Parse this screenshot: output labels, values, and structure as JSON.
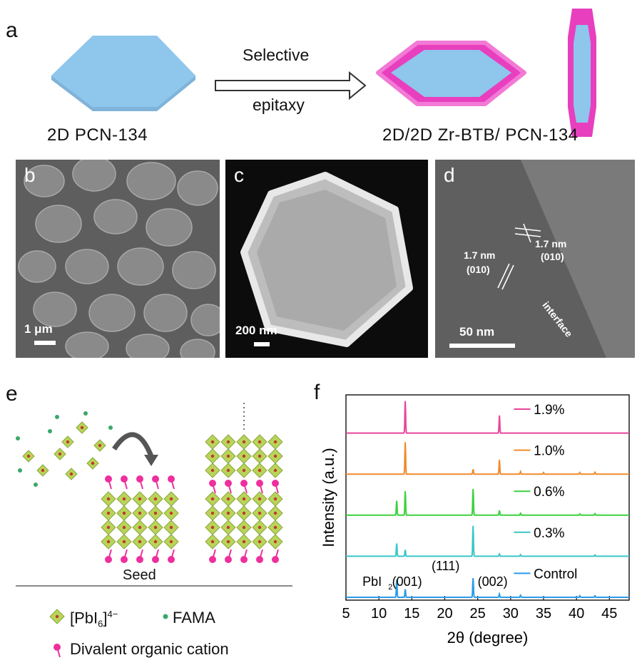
{
  "panel_labels": {
    "a": "a",
    "b": "b",
    "c": "c",
    "d": "d",
    "e": "e",
    "f": "f"
  },
  "panel_a": {
    "left_caption": "2D PCN-134",
    "arrow_top": "Selective",
    "arrow_bottom": "epitaxy",
    "right_caption": "2D/2D Zr-BTB/ PCN-134",
    "colors": {
      "mof": "#8ec6ec",
      "shell": "#e83fbf"
    }
  },
  "panel_b": {
    "scale": "1 μm"
  },
  "panel_c": {
    "scale": "200 nm"
  },
  "panel_d": {
    "scale": "50 nm",
    "spacing_left": "1.7 nm",
    "plane_left": "(010)",
    "spacing_right": "1.7 nm",
    "plane_right": "(010)",
    "interface": "interface"
  },
  "panel_e": {
    "seed_label": "Seed",
    "legend": {
      "octahedron": "[PbI6]4−",
      "dot": "FAMA",
      "cation": "Divalent organic cation"
    },
    "colors": {
      "octahedron": "#b8d45a",
      "cation": "#ee2f9e",
      "dot": "#3aa868"
    }
  },
  "chart_data": {
    "type": "line",
    "xlabel": "2θ (degree)",
    "ylabel": "Intensity (a.u.)",
    "xlim": [
      5,
      48
    ],
    "xticks": [
      5,
      10,
      15,
      20,
      25,
      30,
      35,
      40,
      45
    ],
    "series": [
      {
        "name": "1.9%",
        "color": "#e8449c",
        "peaks": [
          [
            14.0,
            1.0
          ],
          [
            28.3,
            0.55
          ]
        ]
      },
      {
        "name": "1.0%",
        "color": "#f08a2a",
        "peaks": [
          [
            14.0,
            1.0
          ],
          [
            24.3,
            0.15
          ],
          [
            28.3,
            0.45
          ],
          [
            31.5,
            0.08
          ],
          [
            35.0,
            0.05
          ],
          [
            40.5,
            0.05
          ],
          [
            42.8,
            0.06
          ]
        ]
      },
      {
        "name": "0.6%",
        "color": "#3ad23a",
        "peaks": [
          [
            12.7,
            0.45
          ],
          [
            14.0,
            0.75
          ],
          [
            24.3,
            0.82
          ],
          [
            28.3,
            0.15
          ],
          [
            31.5,
            0.06
          ],
          [
            40.5,
            0.04
          ],
          [
            42.8,
            0.05
          ]
        ]
      },
      {
        "name": "0.3%",
        "color": "#3ac6c6",
        "peaks": [
          [
            12.7,
            0.4
          ],
          [
            14.0,
            0.2
          ],
          [
            24.3,
            0.95
          ],
          [
            28.3,
            0.07
          ],
          [
            31.5,
            0.05
          ],
          [
            42.8,
            0.04
          ]
        ]
      },
      {
        "name": "Control",
        "color": "#2a9bea",
        "peaks": [
          [
            12.7,
            0.55
          ],
          [
            14.0,
            0.25
          ],
          [
            24.3,
            0.6
          ],
          [
            28.3,
            0.1
          ],
          [
            31.5,
            0.06
          ],
          [
            40.5,
            0.05
          ],
          [
            42.8,
            0.05
          ]
        ]
      }
    ],
    "annotations": [
      "PbI",
      "(001)",
      "(111)",
      "(002)"
    ]
  }
}
